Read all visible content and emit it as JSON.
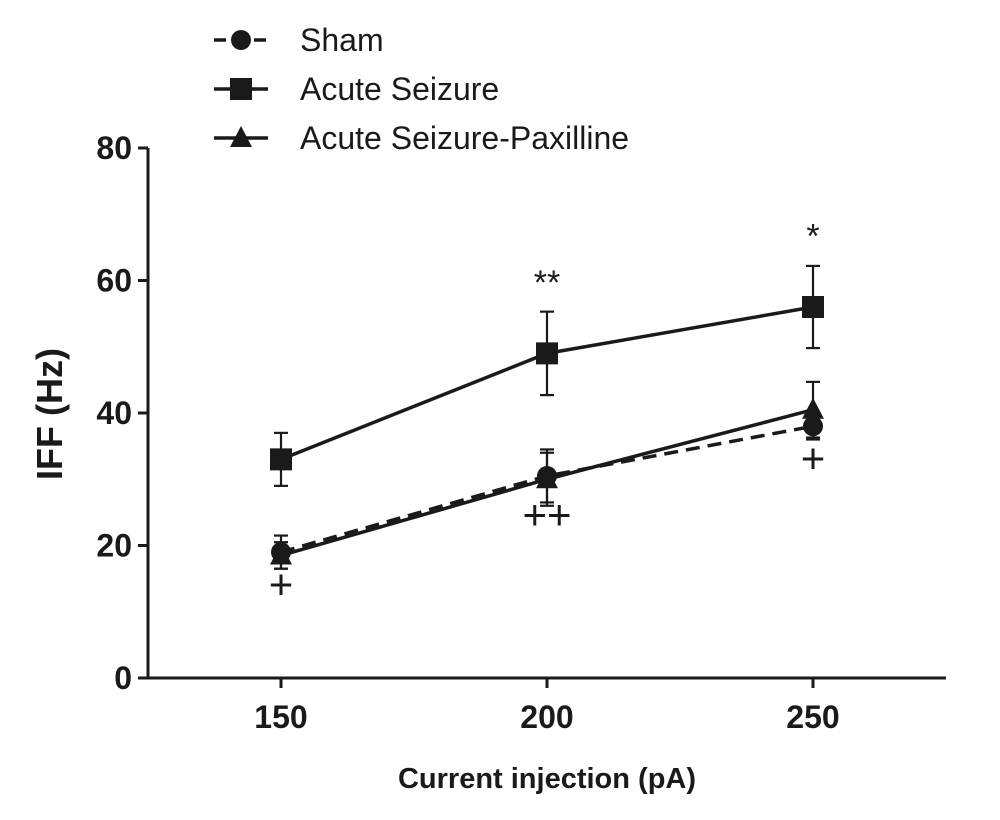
{
  "chart_data": {
    "type": "line",
    "xlabel": "Current injection (pA)",
    "ylabel": "IFF (Hz)",
    "x": [
      150,
      200,
      250
    ],
    "xlim": [
      125,
      275
    ],
    "ylim": [
      0,
      80
    ],
    "xticks": [
      150,
      200,
      250
    ],
    "yticks": [
      0,
      20,
      40,
      60,
      80
    ],
    "legend_position": "top-left",
    "grid": false,
    "series": [
      {
        "name": "Sham",
        "marker": "circle",
        "line": "dashed",
        "color": "#1a1a1a",
        "values": [
          19,
          30.5,
          38
        ],
        "errors": [
          2.5,
          4,
          2
        ]
      },
      {
        "name": "Acute Seizure",
        "marker": "square",
        "line": "solid",
        "color": "#1a1a1a",
        "values": [
          33,
          49,
          56
        ],
        "errors": [
          4,
          6.3,
          6.2
        ]
      },
      {
        "name": "Acute Seizure-Paxilline",
        "marker": "triangle",
        "line": "solid",
        "color": "#1a1a1a",
        "values": [
          18.5,
          30,
          40.5
        ],
        "errors": [
          2,
          4,
          4.2
        ]
      }
    ],
    "annotations": [
      {
        "text": "**",
        "x": 200,
        "y": 58,
        "size": "star"
      },
      {
        "text": "*",
        "x": 250,
        "y": 65,
        "size": "star"
      },
      {
        "text": "+",
        "x": 150,
        "y": 12,
        "size": "plus"
      },
      {
        "text": "++",
        "x": 200,
        "y": 22.5,
        "size": "plus"
      },
      {
        "text": "+",
        "x": 250,
        "y": 31,
        "size": "plus"
      }
    ]
  }
}
